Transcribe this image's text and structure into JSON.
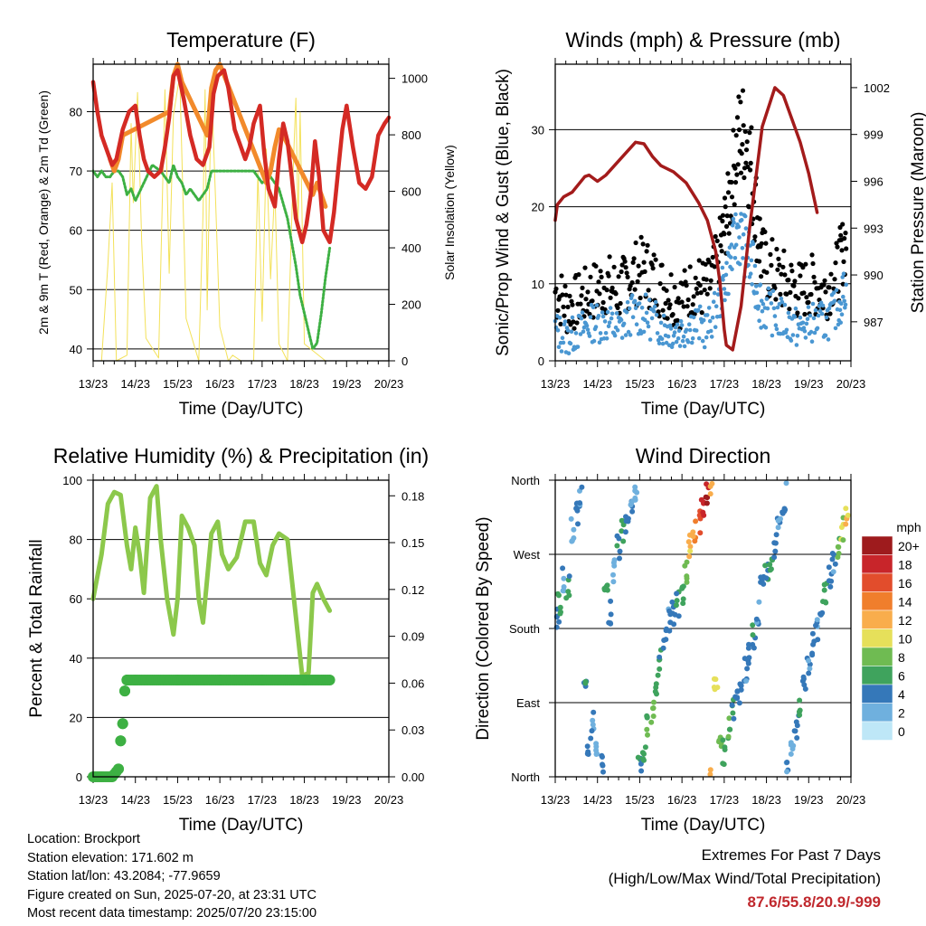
{
  "chart_data": [
    {
      "type": "line",
      "title": "Temperature (F)",
      "xlabel": "Time (Day/UTC)",
      "ylabel": "2m & 9m T (Red, Orange) & 2m Td (Green)",
      "ylabel_right": "Solar Insolation (Yellow)",
      "xticks": [
        "13/23",
        "14/23",
        "15/23",
        "16/23",
        "17/23",
        "18/23",
        "19/23",
        "20/23"
      ],
      "ylim": [
        38,
        88
      ],
      "yticks": [
        40,
        50,
        60,
        70,
        80
      ],
      "ylim_right": [
        0,
        1050
      ],
      "yticks_right": [
        0,
        200,
        400,
        600,
        800,
        1000
      ],
      "grid": true,
      "series": [
        {
          "color": "#d42a24",
          "x": [
            0,
            0.1,
            0.2,
            0.35,
            0.45,
            0.55,
            0.7,
            0.85,
            1.0,
            1.1,
            1.2,
            1.3,
            1.45,
            1.6,
            1.7,
            1.8,
            1.9,
            2.0,
            2.15,
            2.3,
            2.45,
            2.6,
            2.75,
            2.85,
            2.95,
            3.1,
            3.2,
            3.35,
            3.5,
            3.6,
            3.7,
            3.8,
            3.95,
            4.05,
            4.15,
            4.3,
            4.4,
            4.5,
            4.6,
            4.7,
            4.8,
            4.95,
            5.05,
            5.15,
            5.25,
            5.35,
            5.45,
            5.6,
            5.7,
            5.8,
            5.9,
            6.0,
            6.15,
            6.3,
            6.45,
            6.6,
            6.75,
            6.9,
            7.0
          ],
          "y": [
            85,
            80,
            76,
            73,
            71,
            72,
            77,
            80,
            81,
            76,
            72,
            70,
            69,
            70,
            74,
            79,
            86,
            87,
            82,
            76,
            72,
            71,
            74,
            83,
            86,
            87,
            84,
            77,
            74,
            72,
            74,
            78,
            81,
            73,
            67,
            64,
            72,
            78,
            75,
            69,
            62,
            58,
            61,
            66,
            75,
            69,
            60,
            58,
            63,
            70,
            77,
            81,
            74,
            68,
            67,
            69,
            76,
            78,
            79
          ]
        },
        {
          "color": "#f28a2b",
          "x": [
            0.4,
            0.5,
            0.6,
            0.7,
            1.8,
            1.9,
            2.0,
            2.1,
            2.7,
            2.8,
            2.9,
            3.0,
            4.1,
            4.2,
            4.3,
            4.4,
            4.5,
            5.2,
            5.3,
            5.4,
            5.5
          ],
          "y": [
            72,
            70,
            72,
            76,
            80,
            86,
            88,
            85,
            76,
            84,
            87,
            88,
            68,
            70,
            74,
            77,
            76,
            66,
            68,
            66,
            64
          ]
        },
        {
          "color": "#3db043",
          "x": [
            0,
            0.1,
            0.2,
            0.3,
            0.4,
            0.5,
            0.6,
            0.7,
            0.8,
            0.9,
            1.0,
            1.2,
            1.4,
            1.6,
            1.8,
            1.9,
            2.0,
            2.1,
            2.2,
            2.3,
            2.5,
            2.7,
            2.8,
            3.0,
            3.3,
            3.6,
            3.8,
            4.0,
            4.2,
            4.4,
            4.6,
            4.8,
            4.9,
            5.0,
            5.1,
            5.2,
            5.3,
            5.4,
            5.5,
            5.6
          ],
          "y": [
            70,
            69,
            70,
            69,
            69,
            70,
            70,
            69,
            66,
            67,
            65,
            68,
            71,
            70,
            68,
            71,
            69,
            68,
            66,
            67,
            65,
            67,
            70,
            70,
            70,
            70,
            70,
            68,
            69,
            67,
            62,
            54,
            49,
            46,
            43,
            40,
            41,
            46,
            52,
            57
          ]
        },
        {
          "color": "#f3e159",
          "axis": "right",
          "x": [
            0.2,
            0.35,
            0.45,
            0.55,
            0.8,
            0.9,
            0.95,
            1.05,
            1.15,
            1.25,
            1.55,
            1.7,
            1.8,
            1.85,
            1.9,
            2.05,
            2.2,
            2.5,
            2.6,
            2.65,
            2.7,
            2.8,
            2.9,
            3.0,
            3.2,
            3.3,
            3.5,
            3.8,
            3.9,
            4.0,
            4.1,
            4.2,
            4.3,
            4.4,
            4.6,
            4.75,
            4.8,
            4.85,
            4.9,
            5.0,
            5.5,
            5.75,
            5.85
          ],
          "y": [
            0,
            340,
            630,
            0,
            20,
            840,
            560,
            950,
            420,
            80,
            10,
            960,
            310,
            580,
            870,
            1010,
            150,
            0,
            520,
            960,
            180,
            980,
            560,
            120,
            0,
            20,
            0,
            0,
            670,
            140,
            750,
            290,
            620,
            60,
            0,
            740,
            930,
            480,
            880,
            60,
            0,
            0,
            0
          ]
        }
      ]
    },
    {
      "type": "scatter",
      "title": "Winds (mph) & Pressure (mb)",
      "xlabel": "Time (Day/UTC)",
      "ylabel": "Sonic/Prop Wind & Gust (Blue, Black)",
      "ylabel_right": "Station Pressure (Maroon)",
      "xticks": [
        "13/23",
        "14/23",
        "15/23",
        "16/23",
        "17/23",
        "18/23",
        "19/23",
        "20/23"
      ],
      "ylim": [
        0,
        38.5
      ],
      "yticks": [
        0,
        10,
        20,
        30
      ],
      "ylim_right": [
        984.5,
        1003.5
      ],
      "yticks_right": [
        987,
        990,
        993,
        996,
        999,
        1002
      ],
      "grid": true,
      "series": [
        {
          "color": "#000000",
          "x": [
            0,
            0.3,
            0.6,
            0.9,
            1.2,
            1.5,
            1.8,
            2.1,
            2.4,
            2.7,
            3.0,
            3.3,
            3.6,
            3.9,
            4.1,
            4.3,
            4.5,
            4.7,
            4.9,
            5.2,
            5.5,
            5.8,
            6.1,
            6.4,
            6.7,
            6.9
          ],
          "y": [
            9,
            7,
            8,
            9,
            10,
            9,
            11,
            12,
            10,
            9,
            8,
            10,
            9,
            14,
            20,
            28,
            30,
            22,
            13,
            11,
            10,
            9,
            10,
            9,
            12,
            16
          ]
        },
        {
          "color": "#4a97d2",
          "x": [
            0,
            0.3,
            0.6,
            0.9,
            1.2,
            1.5,
            1.8,
            2.1,
            2.4,
            2.7,
            3.0,
            3.3,
            3.6,
            3.9,
            4.1,
            4.3,
            4.5,
            4.7,
            4.9,
            5.2,
            5.5,
            5.8,
            6.1,
            6.4,
            6.7,
            6.9
          ],
          "y": [
            4,
            3,
            4,
            5,
            5,
            4,
            6,
            6,
            5,
            4,
            4,
            5,
            4,
            8,
            12,
            17,
            15,
            11,
            7,
            6,
            5,
            4,
            5,
            5,
            7,
            10
          ]
        },
        {
          "color": "#a31b1b",
          "axis": "right",
          "x": [
            0,
            0.05,
            0.2,
            0.4,
            0.7,
            0.8,
            1.0,
            1.2,
            1.4,
            1.7,
            1.9,
            2.1,
            2.3,
            2.5,
            2.8,
            3.1,
            3.4,
            3.6,
            3.8,
            3.9,
            4.0,
            4.05,
            4.2,
            4.4,
            4.6,
            4.9,
            5.2,
            5.4,
            5.6,
            5.8,
            6.0,
            6.2
          ],
          "y": [
            993.5,
            994.5,
            995,
            995.3,
            996.3,
            996.4,
            996,
            996.4,
            997,
            997.9,
            998.5,
            998.4,
            997.6,
            997,
            996.6,
            995.9,
            994.6,
            993.5,
            991.5,
            989.5,
            986.5,
            985.5,
            985.2,
            988,
            993,
            999.5,
            1002,
            1001.5,
            1000,
            998.5,
            996.5,
            994
          ]
        }
      ]
    },
    {
      "type": "line",
      "title": "Relative Humidity (%) & Precipitation (in)",
      "xlabel": "Time (Day/UTC)",
      "ylabel": "Percent & Total Rainfall",
      "xticks": [
        "13/23",
        "14/23",
        "15/23",
        "16/23",
        "17/23",
        "18/23",
        "19/23",
        "20/23"
      ],
      "ylim": [
        0,
        100
      ],
      "yticks": [
        0,
        20,
        40,
        60,
        80,
        100
      ],
      "ylim_right": [
        0,
        0.19
      ],
      "yticks_right": [
        "0.00",
        "0.03",
        "0.06",
        "0.09",
        "0.12",
        "0.15",
        "0.18"
      ],
      "grid": true,
      "series": [
        {
          "color": "#8cc84b",
          "x": [
            0,
            0.2,
            0.35,
            0.5,
            0.65,
            0.8,
            0.9,
            1.0,
            1.1,
            1.2,
            1.35,
            1.5,
            1.6,
            1.75,
            1.9,
            2.0,
            2.1,
            2.25,
            2.4,
            2.5,
            2.6,
            2.8,
            2.95,
            3.05,
            3.2,
            3.4,
            3.6,
            3.8,
            3.95,
            4.1,
            4.25,
            4.4,
            4.6,
            4.8,
            4.95,
            5.1,
            5.2,
            5.3,
            5.45,
            5.6
          ],
          "y": [
            60,
            75,
            92,
            96,
            95,
            78,
            70,
            84,
            75,
            62,
            94,
            98,
            80,
            60,
            48,
            60,
            88,
            84,
            78,
            60,
            52,
            82,
            86,
            75,
            70,
            74,
            86,
            86,
            72,
            68,
            78,
            82,
            80,
            54,
            34,
            35,
            62,
            65,
            60,
            56
          ]
        },
        {
          "color": "#3db043",
          "axis": "right",
          "x": [
            0,
            0.2,
            0.45,
            0.6,
            0.65,
            0.7,
            0.75,
            0.8,
            1.0,
            2.0,
            3.0,
            4.0,
            5.0,
            5.6
          ],
          "y": [
            0,
            0,
            0,
            0.005,
            0.023,
            0.034,
            0.055,
            0.062,
            0.062,
            0.062,
            0.062,
            0.062,
            0.062,
            0.062
          ]
        }
      ]
    },
    {
      "type": "scatter",
      "title": "Wind Direction",
      "xlabel": "Time (Day/UTC)",
      "ylabel": "Direction (Colored By Speed)",
      "xticks": [
        "13/23",
        "14/23",
        "15/23",
        "16/23",
        "17/23",
        "18/23",
        "19/23",
        "20/23"
      ],
      "yticks": [
        "North",
        "East",
        "South",
        "West",
        "North"
      ],
      "ylim": [
        0,
        360
      ],
      "grid": true,
      "legend": {
        "title": "mph",
        "labels": [
          "20+",
          "18",
          "16",
          "14",
          "12",
          "10",
          "8",
          "6",
          "4",
          "2",
          "0"
        ],
        "colors": [
          "#9e1b1d",
          "#c8252a",
          "#e24d2c",
          "#f07e2c",
          "#f9ad4c",
          "#e6e05a",
          "#6fbb52",
          "#3fa35d",
          "#3578b9",
          "#6fb0de",
          "#bee7f7"
        ]
      },
      "series": [
        {
          "name": "",
          "x": [
            0.05,
            0.1,
            0.2,
            0.3,
            0.4,
            0.5,
            0.6,
            0.7,
            0.8,
            0.9,
            1.0,
            1.1,
            1.2,
            1.3,
            1.4,
            1.5,
            1.6,
            1.7,
            1.8,
            1.9,
            2.0,
            2.1,
            2.2,
            2.3,
            2.4,
            2.5,
            2.6,
            2.7,
            2.8,
            2.9,
            3.0,
            3.1,
            3.2,
            3.3,
            3.4,
            3.5,
            3.6,
            3.7,
            3.8,
            3.9,
            4.0,
            4.1,
            4.2,
            4.3,
            4.4,
            4.5,
            4.6,
            4.7,
            4.8,
            4.9,
            5.0,
            5.1,
            5.2,
            5.3,
            5.4,
            5.5,
            5.6,
            5.7,
            5.8,
            5.9,
            6.0,
            6.1,
            6.2,
            6.3,
            6.4,
            6.5,
            6.6,
            6.7,
            6.8,
            6.9
          ],
          "y": [
            190,
            210,
            240,
            230,
            300,
            320,
            340,
            110,
            40,
            70,
            30,
            20,
            220,
            200,
            250,
            280,
            300,
            310,
            330,
            350,
            10,
            30,
            60,
            80,
            110,
            140,
            170,
            190,
            200,
            210,
            220,
            250,
            280,
            300,
            310,
            330,
            345,
            355,
            120,
            40,
            30,
            60,
            80,
            90,
            100,
            130,
            150,
            170,
            200,
            230,
            250,
            260,
            280,
            300,
            330,
            10,
            40,
            60,
            80,
            120,
            140,
            160,
            180,
            200,
            220,
            240,
            260,
            280,
            300,
            320
          ],
          "speed": [
            4,
            6,
            3,
            5,
            2,
            4,
            3,
            5,
            4,
            3,
            2,
            4,
            6,
            4,
            3,
            5,
            6,
            4,
            3,
            2,
            5,
            6,
            7,
            8,
            6,
            5,
            4,
            3,
            4,
            5,
            6,
            8,
            11,
            13,
            16,
            18,
            19,
            12,
            10,
            8,
            6,
            7,
            5,
            4,
            4,
            3,
            4,
            5,
            3,
            4,
            5,
            6,
            4,
            3,
            4,
            3,
            2,
            4,
            5,
            4,
            3,
            4,
            3,
            5,
            6,
            4,
            3,
            7,
            9,
            11
          ]
        }
      ]
    }
  ],
  "info": {
    "location": "Location: Brockport",
    "elevation": "Station elevation: 171.602 m",
    "latlon": "Station lat/lon: 43.2084; -77.9659",
    "created": "Figure created on Sun, 2025-07-20, at 23:31 UTC",
    "recent": "Most recent data timestamp: 2025/07/20 23:15:00"
  },
  "extremes": {
    "line1": "Extremes For Past 7 Days",
    "line2": "(High/Low/Max Wind/Total Precipitation)",
    "values": "87.6/55.8/20.9/-999"
  }
}
